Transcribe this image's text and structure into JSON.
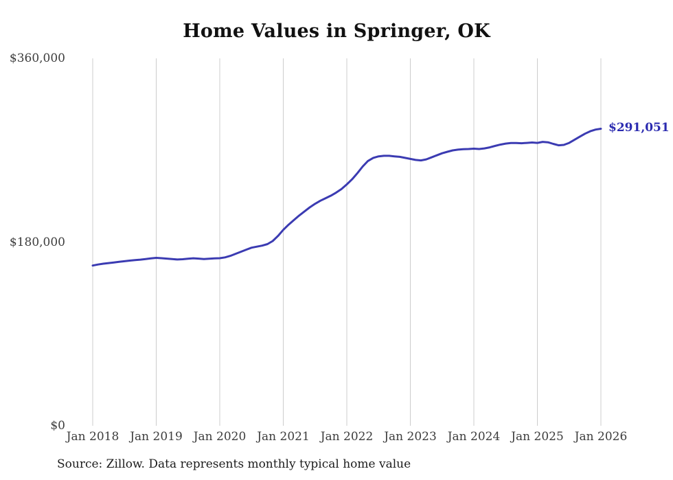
{
  "title": "Home Values in Springer, OK",
  "source_note": "Source: Zillow. Data represents monthly typical home value",
  "colors": {
    "line": "#3b3bb2",
    "annotation": "#2b2bb0",
    "grid": "#cccccc",
    "label": "#3c3c3c"
  },
  "chart_data": {
    "type": "line",
    "title": "Home Values in Springer, OK",
    "xlabel": "",
    "ylabel": "",
    "ylim": [
      0,
      360000
    ],
    "grid": "vertical-only",
    "legend": "none",
    "y_ticks": [
      {
        "value": 0,
        "label": "$0"
      },
      {
        "value": 180000,
        "label": "$180,000"
      },
      {
        "value": 360000,
        "label": "$360,000"
      }
    ],
    "x_ticks": [
      "Jan 2018",
      "Jan 2019",
      "Jan 2020",
      "Jan 2021",
      "Jan 2022",
      "Jan 2023",
      "Jan 2024",
      "Jan 2025",
      "Jan 2026"
    ],
    "series": [
      {
        "name": "Monthly typical home value",
        "start_month": "2018-01",
        "frequency": "monthly",
        "values": [
          157000,
          158000,
          158800,
          159400,
          160000,
          160600,
          161200,
          161800,
          162300,
          162800,
          163400,
          164000,
          164500,
          164200,
          163800,
          163300,
          162900,
          163200,
          163700,
          164100,
          163800,
          163400,
          163700,
          164000,
          164200,
          165000,
          166500,
          168500,
          170500,
          172500,
          174500,
          175500,
          176500,
          178000,
          181000,
          186000,
          192000,
          197000,
          201500,
          206000,
          210000,
          214000,
          217500,
          220500,
          223000,
          225500,
          228500,
          232000,
          236500,
          241500,
          247500,
          254000,
          259500,
          262500,
          264000,
          264500,
          264500,
          264000,
          263500,
          262500,
          261500,
          260500,
          260000,
          261000,
          263000,
          265000,
          267000,
          268500,
          269800,
          270600,
          271000,
          271200,
          271500,
          271200,
          271800,
          272800,
          274200,
          275500,
          276500,
          277000,
          277100,
          276800,
          277200,
          277600,
          277200,
          278200,
          277800,
          276200,
          274800,
          275200,
          277200,
          280200,
          283200,
          286200,
          288600,
          290200,
          291051
        ]
      }
    ],
    "end_annotation": {
      "label": "$291,051",
      "value": 291051
    }
  }
}
